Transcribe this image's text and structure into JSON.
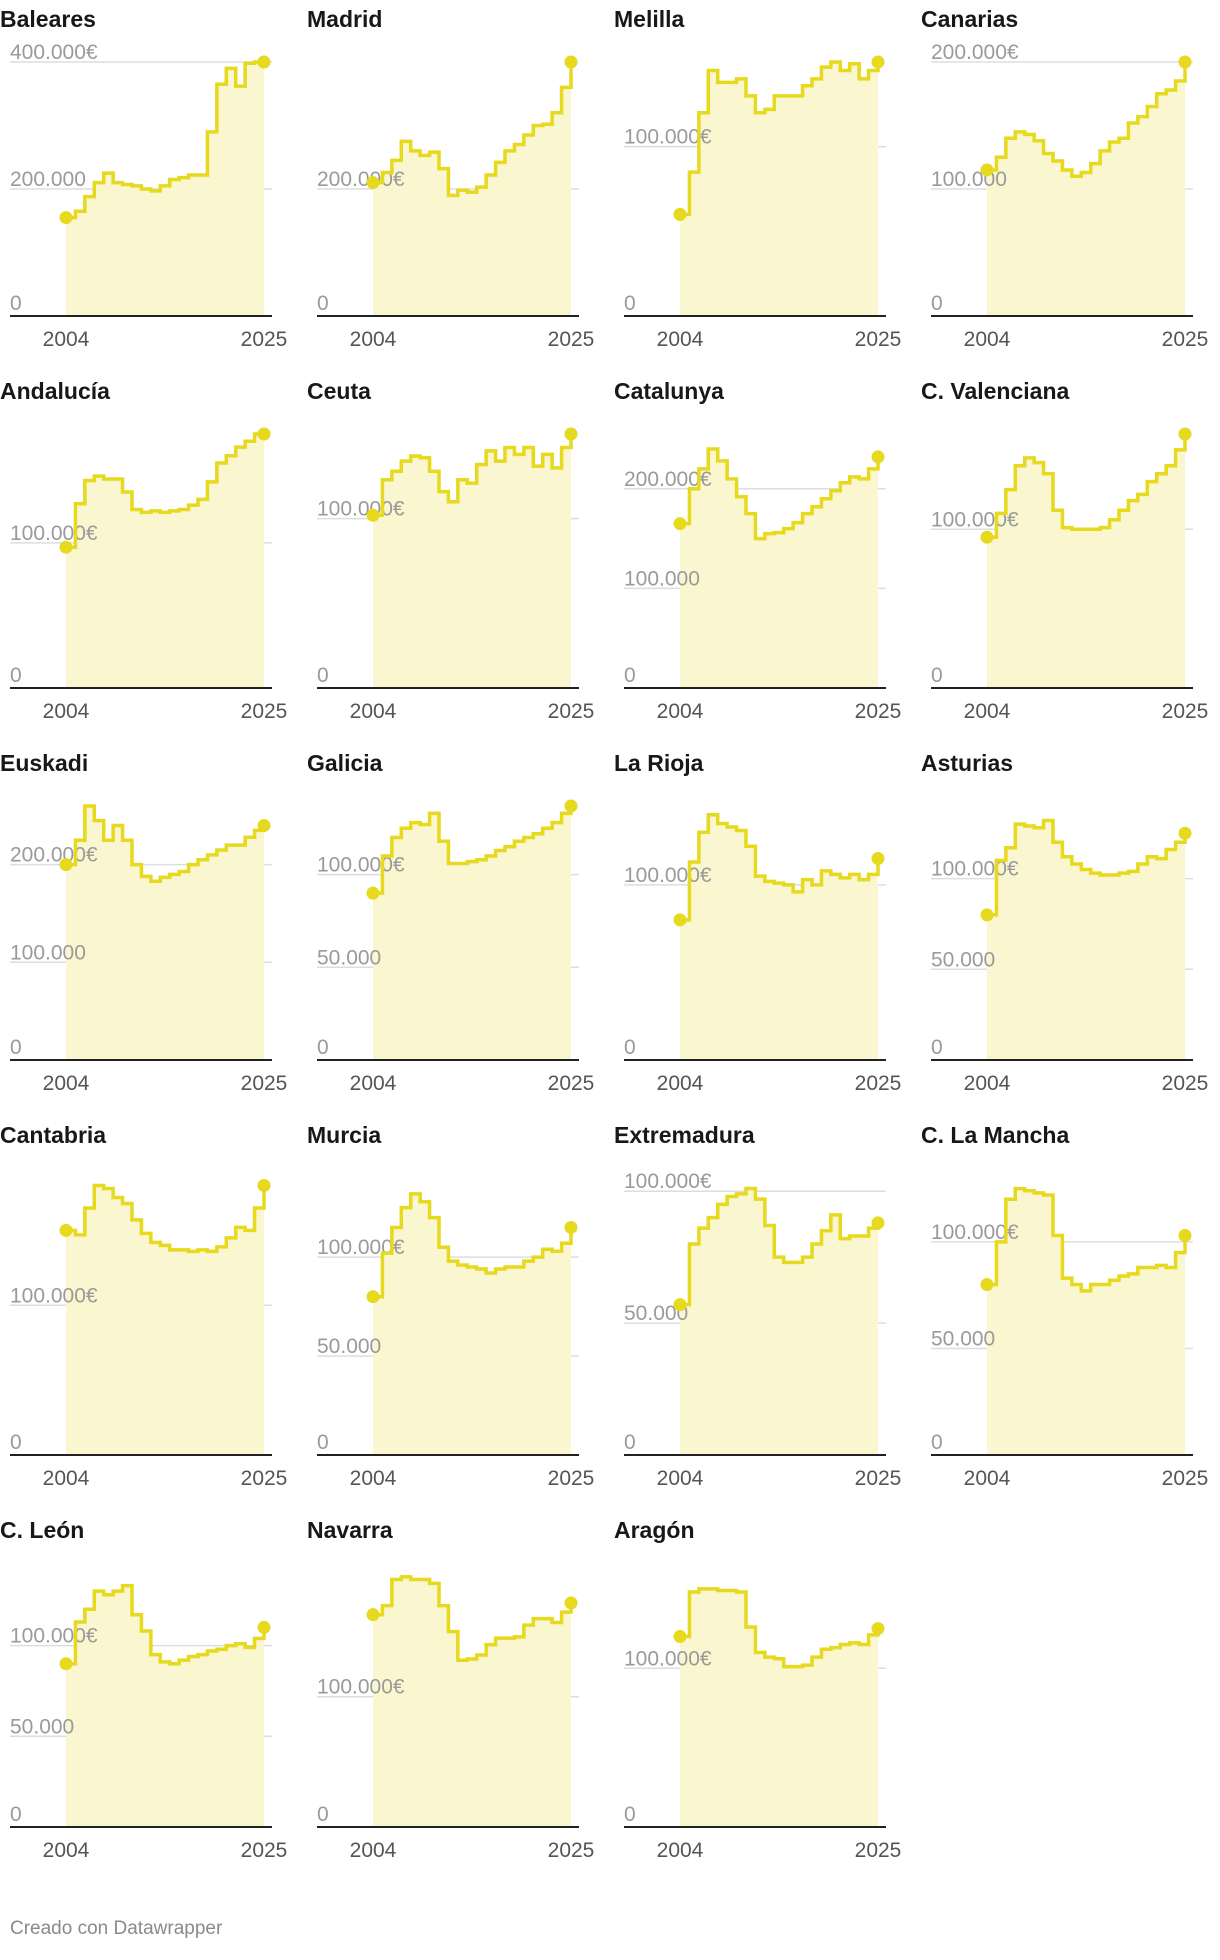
{
  "colors": {
    "line": "#e6d91e",
    "area": "#faf6cf",
    "grid": "#dddddd",
    "axis": "#222222"
  },
  "credit": "Creado con Datawrapper",
  "chart_data": [
    {
      "type": "area",
      "title": "Baleares",
      "x": [
        2004,
        2005,
        2006,
        2007,
        2008,
        2009,
        2010,
        2011,
        2012,
        2013,
        2014,
        2015,
        2016,
        2017,
        2018,
        2019,
        2020,
        2021,
        2022,
        2023,
        2024,
        2025
      ],
      "values": [
        155000,
        165000,
        188000,
        210000,
        225000,
        210000,
        207000,
        205000,
        200000,
        197000,
        205000,
        215000,
        218000,
        222000,
        222000,
        290000,
        365000,
        390000,
        362000,
        398000,
        400000,
        400000
      ],
      "ylim": [
        0,
        400000
      ],
      "yticks": [
        0,
        200000,
        400000
      ],
      "ytick_labels": [
        "0",
        "200.000",
        "400.000€"
      ],
      "xtick_labels": [
        "2004",
        "2025"
      ]
    },
    {
      "type": "area",
      "title": "Madrid",
      "x": [
        2004,
        2005,
        2006,
        2007,
        2008,
        2009,
        2010,
        2011,
        2012,
        2013,
        2014,
        2015,
        2016,
        2017,
        2018,
        2019,
        2020,
        2021,
        2022,
        2023,
        2024,
        2025
      ],
      "values": [
        210000,
        226000,
        245000,
        275000,
        260000,
        253000,
        258000,
        232000,
        190000,
        198000,
        195000,
        203000,
        222000,
        242000,
        260000,
        270000,
        285000,
        300000,
        302000,
        320000,
        360000,
        400000
      ],
      "ylim": [
        0,
        400000
      ],
      "yticks": [
        0,
        200000
      ],
      "ytick_labels": [
        "0",
        "200.000€"
      ],
      "xtick_labels": [
        "2004",
        "2025"
      ]
    },
    {
      "type": "area",
      "title": "Melilla",
      "x": [
        2004,
        2005,
        2006,
        2007,
        2008,
        2009,
        2010,
        2011,
        2012,
        2013,
        2014,
        2015,
        2016,
        2017,
        2018,
        2019,
        2020,
        2021,
        2022,
        2023,
        2024,
        2025
      ],
      "values": [
        60000,
        85000,
        120000,
        145000,
        138000,
        138000,
        140000,
        130000,
        120000,
        122000,
        130000,
        130000,
        130000,
        136000,
        140000,
        147000,
        150000,
        145000,
        149000,
        140000,
        145000,
        150000
      ],
      "ylim": [
        0,
        150000
      ],
      "yticks": [
        0,
        100000
      ],
      "ytick_labels": [
        "0",
        "100.000€"
      ],
      "xtick_labels": [
        "2004",
        "2025"
      ]
    },
    {
      "type": "area",
      "title": "Canarias",
      "x": [
        2004,
        2005,
        2006,
        2007,
        2008,
        2009,
        2010,
        2011,
        2012,
        2013,
        2014,
        2015,
        2016,
        2017,
        2018,
        2019,
        2020,
        2021,
        2022,
        2023,
        2024,
        2025
      ],
      "values": [
        115000,
        125000,
        140000,
        145000,
        143000,
        138000,
        128000,
        122000,
        115000,
        110000,
        113000,
        120000,
        130000,
        137000,
        140000,
        152000,
        157000,
        165000,
        175000,
        178000,
        185000,
        200000
      ],
      "ylim": [
        0,
        200000
      ],
      "yticks": [
        0,
        100000,
        200000
      ],
      "ytick_labels": [
        "0",
        "100.000",
        "200.000€"
      ],
      "xtick_labels": [
        "2004",
        "2025"
      ]
    },
    {
      "type": "area",
      "title": "Andalucía",
      "x": [
        2004,
        2005,
        2006,
        2007,
        2008,
        2009,
        2010,
        2011,
        2012,
        2013,
        2014,
        2015,
        2016,
        2017,
        2018,
        2019,
        2020,
        2021,
        2022,
        2023,
        2024,
        2025
      ],
      "values": [
        97000,
        127000,
        143000,
        146000,
        144000,
        144000,
        135000,
        123000,
        121000,
        122000,
        121000,
        122000,
        123000,
        126000,
        130000,
        142000,
        155000,
        160000,
        166000,
        170000,
        175000,
        175000
      ],
      "ylim": [
        0,
        175000
      ],
      "yticks": [
        0,
        100000
      ],
      "ytick_labels": [
        "0",
        "100.000€"
      ],
      "xtick_labels": [
        "2004",
        "2025"
      ]
    },
    {
      "type": "area",
      "title": "Ceuta",
      "x": [
        2004,
        2005,
        2006,
        2007,
        2008,
        2009,
        2010,
        2011,
        2012,
        2013,
        2014,
        2015,
        2016,
        2017,
        2018,
        2019,
        2020,
        2021,
        2022,
        2023,
        2024,
        2025
      ],
      "values": [
        102000,
        123000,
        128000,
        134000,
        137000,
        136000,
        128000,
        116000,
        110000,
        123000,
        121000,
        132000,
        140000,
        134000,
        142000,
        138000,
        142000,
        131000,
        138000,
        130000,
        142000,
        150000
      ],
      "ylim": [
        0,
        150000
      ],
      "yticks": [
        0,
        100000
      ],
      "ytick_labels": [
        "0",
        "100.000€"
      ],
      "xtick_labels": [
        "2004",
        "2025"
      ]
    },
    {
      "type": "area",
      "title": "Catalunya",
      "x": [
        2004,
        2005,
        2006,
        2007,
        2008,
        2009,
        2010,
        2011,
        2012,
        2013,
        2014,
        2015,
        2016,
        2017,
        2018,
        2019,
        2020,
        2021,
        2022,
        2023,
        2024,
        2025
      ],
      "values": [
        165000,
        200000,
        220000,
        240000,
        228000,
        210000,
        192000,
        175000,
        150000,
        155000,
        156000,
        160000,
        166000,
        175000,
        182000,
        190000,
        198000,
        206000,
        212000,
        210000,
        220000,
        232000
      ],
      "ylim": [
        0,
        255000
      ],
      "yticks": [
        0,
        100000,
        200000
      ],
      "ytick_labels": [
        "0",
        "100.000",
        "200.000€"
      ],
      "xtick_labels": [
        "2004",
        "2025"
      ]
    },
    {
      "type": "area",
      "title": "C. Valenciana",
      "x": [
        2004,
        2005,
        2006,
        2007,
        2008,
        2009,
        2010,
        2011,
        2012,
        2013,
        2014,
        2015,
        2016,
        2017,
        2018,
        2019,
        2020,
        2021,
        2022,
        2023,
        2024,
        2025
      ],
      "values": [
        95000,
        110000,
        125000,
        140000,
        145000,
        142000,
        135000,
        112000,
        101000,
        100000,
        100000,
        100000,
        101000,
        106000,
        112000,
        118000,
        122000,
        130000,
        135000,
        140000,
        150000,
        160000
      ],
      "ylim": [
        0,
        160000
      ],
      "yticks": [
        0,
        100000
      ],
      "ytick_labels": [
        "0",
        "100.000€"
      ],
      "xtick_labels": [
        "2004",
        "2025"
      ]
    },
    {
      "type": "area",
      "title": "Euskadi",
      "x": [
        2004,
        2005,
        2006,
        2007,
        2008,
        2009,
        2010,
        2011,
        2012,
        2013,
        2014,
        2015,
        2016,
        2017,
        2018,
        2019,
        2020,
        2021,
        2022,
        2023,
        2024,
        2025
      ],
      "values": [
        200000,
        225000,
        260000,
        245000,
        225000,
        240000,
        225000,
        200000,
        188000,
        183000,
        187000,
        190000,
        193000,
        200000,
        205000,
        210000,
        215000,
        220000,
        220000,
        228000,
        235000,
        240000
      ],
      "ylim": [
        0,
        260000
      ],
      "yticks": [
        0,
        100000,
        200000
      ],
      "ytick_labels": [
        "0",
        "100.000",
        "200.000€"
      ],
      "xtick_labels": [
        "2004",
        "2025"
      ]
    },
    {
      "type": "area",
      "title": "Galicia",
      "x": [
        2004,
        2005,
        2006,
        2007,
        2008,
        2009,
        2010,
        2011,
        2012,
        2013,
        2014,
        2015,
        2016,
        2017,
        2018,
        2019,
        2020,
        2021,
        2022,
        2023,
        2024,
        2025
      ],
      "values": [
        90000,
        110000,
        120000,
        125000,
        128000,
        127000,
        133000,
        118000,
        106000,
        106000,
        107000,
        108000,
        110000,
        113000,
        115000,
        118000,
        120000,
        122000,
        125000,
        128000,
        133000,
        137000
      ],
      "ylim": [
        0,
        137000
      ],
      "yticks": [
        0,
        50000,
        100000
      ],
      "ytick_labels": [
        "0",
        "50.000",
        "100.000€"
      ],
      "xtick_labels": [
        "2004",
        "2025"
      ]
    },
    {
      "type": "area",
      "title": "La Rioja",
      "x": [
        2004,
        2005,
        2006,
        2007,
        2008,
        2009,
        2010,
        2011,
        2012,
        2013,
        2014,
        2015,
        2016,
        2017,
        2018,
        2019,
        2020,
        2021,
        2022,
        2023,
        2024,
        2025
      ],
      "values": [
        80000,
        113000,
        130000,
        140000,
        135000,
        133000,
        131000,
        122000,
        105000,
        102000,
        101000,
        100000,
        96000,
        103000,
        100000,
        108000,
        106000,
        104000,
        106000,
        103000,
        106000,
        115000
      ],
      "ylim": [
        0,
        145000
      ],
      "yticks": [
        0,
        100000
      ],
      "ytick_labels": [
        "0",
        "100.000€"
      ],
      "xtick_labels": [
        "2004",
        "2025"
      ]
    },
    {
      "type": "area",
      "title": "Asturias",
      "x": [
        2004,
        2005,
        2006,
        2007,
        2008,
        2009,
        2010,
        2011,
        2012,
        2013,
        2014,
        2015,
        2016,
        2017,
        2018,
        2019,
        2020,
        2021,
        2022,
        2023,
        2024,
        2025
      ],
      "values": [
        80000,
        110000,
        117000,
        130000,
        129000,
        128000,
        132000,
        120000,
        112000,
        108000,
        105000,
        103000,
        102000,
        102000,
        103000,
        104000,
        108000,
        112000,
        111000,
        116000,
        120000,
        125000
      ],
      "ylim": [
        0,
        140000
      ],
      "yticks": [
        0,
        50000,
        100000
      ],
      "ytick_labels": [
        "0",
        "50.000",
        "100.000€"
      ],
      "xtick_labels": [
        "2004",
        "2025"
      ]
    },
    {
      "type": "area",
      "title": "Cantabria",
      "x": [
        2004,
        2005,
        2006,
        2007,
        2008,
        2009,
        2010,
        2011,
        2012,
        2013,
        2014,
        2015,
        2016,
        2017,
        2018,
        2019,
        2020,
        2021,
        2022,
        2023,
        2024,
        2025
      ],
      "values": [
        150000,
        147000,
        165000,
        180000,
        178000,
        172000,
        168000,
        157000,
        148000,
        142000,
        140000,
        137000,
        137000,
        136000,
        137000,
        136000,
        139000,
        145000,
        152000,
        150000,
        165000,
        180000
      ],
      "ylim": [
        0,
        185000
      ],
      "yticks": [
        0,
        100000
      ],
      "ytick_labels": [
        "0",
        "100.000€"
      ],
      "xtick_labels": [
        "2004",
        "2025"
      ]
    },
    {
      "type": "area",
      "title": "Murcia",
      "x": [
        2004,
        2005,
        2006,
        2007,
        2008,
        2009,
        2010,
        2011,
        2012,
        2013,
        2014,
        2015,
        2016,
        2017,
        2018,
        2019,
        2020,
        2021,
        2022,
        2023,
        2024,
        2025
      ],
      "values": [
        80000,
        102000,
        115000,
        125000,
        132000,
        128000,
        120000,
        105000,
        98000,
        96000,
        95000,
        94000,
        92000,
        94000,
        95000,
        95000,
        98000,
        100000,
        104000,
        103000,
        107000,
        115000
      ],
      "ylim": [
        0,
        140000
      ],
      "yticks": [
        0,
        50000,
        100000
      ],
      "ytick_labels": [
        "0",
        "50.000",
        "100.000€"
      ],
      "xtick_labels": [
        "2004",
        "2025"
      ]
    },
    {
      "type": "area",
      "title": "Extremadura",
      "x": [
        2004,
        2005,
        2006,
        2007,
        2008,
        2009,
        2010,
        2011,
        2012,
        2013,
        2014,
        2015,
        2016,
        2017,
        2018,
        2019,
        2020,
        2021,
        2022,
        2023,
        2024,
        2025
      ],
      "values": [
        57000,
        80000,
        86000,
        90000,
        95000,
        98000,
        99000,
        101000,
        97000,
        87000,
        75000,
        73000,
        73000,
        75000,
        80000,
        85000,
        91000,
        82000,
        83000,
        83000,
        86000,
        88000
      ],
      "ylim": [
        0,
        105000
      ],
      "yticks": [
        0,
        50000,
        100000
      ],
      "ytick_labels": [
        "0",
        "50.000",
        "100.000€"
      ],
      "xtick_labels": [
        "2004",
        "2025"
      ]
    },
    {
      "type": "area",
      "title": "C. La Mancha",
      "x": [
        2004,
        2005,
        2006,
        2007,
        2008,
        2009,
        2010,
        2011,
        2012,
        2013,
        2014,
        2015,
        2016,
        2017,
        2018,
        2019,
        2020,
        2021,
        2022,
        2023,
        2024,
        2025
      ],
      "values": [
        80000,
        100000,
        120000,
        125000,
        124000,
        123000,
        122000,
        103000,
        83000,
        80000,
        77000,
        80000,
        80000,
        82000,
        84000,
        85000,
        88000,
        88000,
        89000,
        88000,
        95000,
        103000
      ],
      "ylim": [
        0,
        130000
      ],
      "yticks": [
        0,
        50000,
        100000
      ],
      "ytick_labels": [
        "0",
        "50.000",
        "100.000€"
      ],
      "xtick_labels": [
        "2004",
        "2025"
      ]
    },
    {
      "type": "area",
      "title": "C. León",
      "x": [
        2004,
        2005,
        2006,
        2007,
        2008,
        2009,
        2010,
        2011,
        2012,
        2013,
        2014,
        2015,
        2016,
        2017,
        2018,
        2019,
        2020,
        2021,
        2022,
        2023,
        2024,
        2025
      ],
      "values": [
        90000,
        113000,
        120000,
        130000,
        128000,
        130000,
        133000,
        117000,
        108000,
        95000,
        91000,
        90000,
        92000,
        94000,
        95000,
        97000,
        98000,
        100000,
        101000,
        99000,
        104000,
        110000
      ],
      "ylim": [
        0,
        140000
      ],
      "yticks": [
        0,
        50000,
        100000
      ],
      "ytick_labels": [
        "0",
        "50.000",
        "100.000€"
      ],
      "xtick_labels": [
        "2004",
        "2025"
      ]
    },
    {
      "type": "area",
      "title": "Navarra",
      "x": [
        2004,
        2005,
        2006,
        2007,
        2008,
        2009,
        2010,
        2011,
        2012,
        2013,
        2014,
        2015,
        2016,
        2017,
        2018,
        2019,
        2020,
        2021,
        2022,
        2023,
        2024,
        2025
      ],
      "values": [
        163000,
        170000,
        190000,
        192000,
        190000,
        190000,
        187000,
        170000,
        150000,
        128000,
        129000,
        132000,
        140000,
        145000,
        145000,
        146000,
        155000,
        160000,
        160000,
        157000,
        165000,
        172000
      ],
      "ylim": [
        0,
        195000
      ],
      "yticks": [
        0,
        100000
      ],
      "ytick_labels": [
        "0",
        "100.000€"
      ],
      "xtick_labels": [
        "2004",
        "2025"
      ]
    },
    {
      "type": "area",
      "title": "Aragón",
      "x": [
        2004,
        2005,
        2006,
        2007,
        2008,
        2009,
        2010,
        2011,
        2012,
        2013,
        2014,
        2015,
        2016,
        2017,
        2018,
        2019,
        2020,
        2021,
        2022,
        2023,
        2024,
        2025
      ],
      "values": [
        120000,
        148000,
        150000,
        150000,
        149000,
        149000,
        148000,
        126000,
        110000,
        107000,
        106000,
        101000,
        101000,
        102000,
        107000,
        112000,
        113000,
        115000,
        116000,
        115000,
        121000,
        125000
      ],
      "ylim": [
        0,
        160000
      ],
      "yticks": [
        0,
        100000
      ],
      "ytick_labels": [
        "0",
        "100.000€"
      ],
      "xtick_labels": [
        "2004",
        "2025"
      ]
    }
  ]
}
